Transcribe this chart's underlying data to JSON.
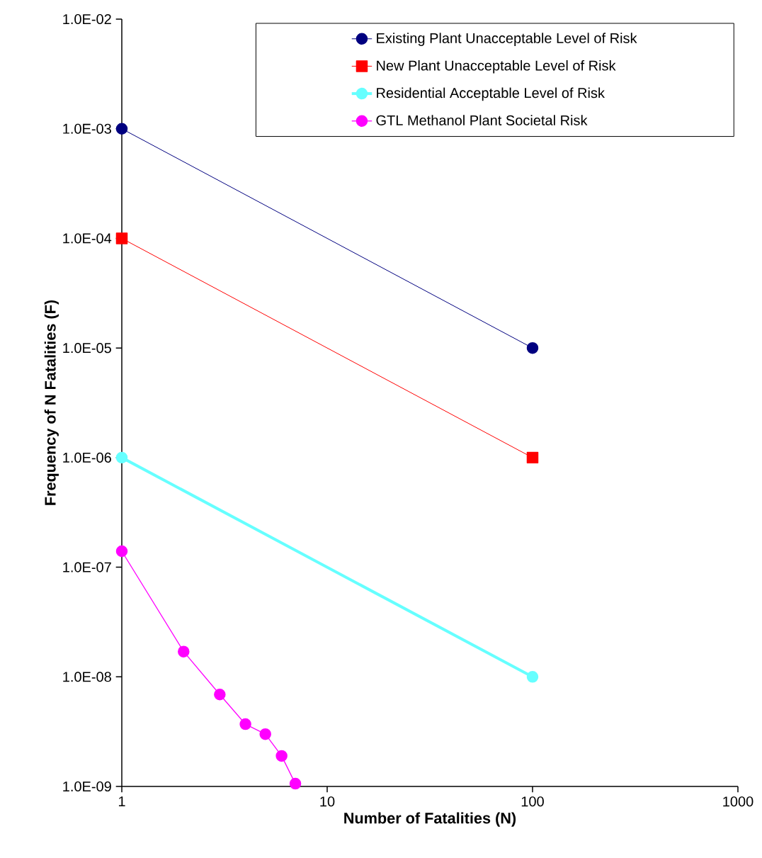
{
  "chart_data": {
    "type": "line",
    "xlabel": "Number of Fatalities (N)",
    "ylabel": "Frequency of N Fatalities (F)",
    "log": "xy",
    "xlim": [
      1,
      1000
    ],
    "xticks": [
      1,
      10,
      100,
      1000
    ],
    "ylim": [
      1e-09,
      0.01
    ],
    "yticks": [
      {
        "value": 1e-09,
        "label": "1.0E-09"
      },
      {
        "value": 1e-08,
        "label": "1.0E-08"
      },
      {
        "value": 1e-07,
        "label": "1.0E-07"
      },
      {
        "value": 1e-06,
        "label": "1.0E-06"
      },
      {
        "value": 1e-05,
        "label": "1.0E-05"
      },
      {
        "value": 0.0001,
        "label": "1.0E-04"
      },
      {
        "value": 0.001,
        "label": "1.0E-03"
      },
      {
        "value": 0.01,
        "label": "1.0E-02"
      }
    ],
    "grid": false,
    "legend": "top right",
    "line_style": "solid",
    "series": [
      {
        "name": "Existing Plant Unacceptable Level of Risk",
        "color": "#000080",
        "marker": "circle",
        "x": [
          1,
          100
        ],
        "values": [
          0.001,
          1e-05
        ]
      },
      {
        "name": "New Plant Unacceptable Level of Risk",
        "color": "#ff0000",
        "marker": "square",
        "x": [
          1,
          100
        ],
        "values": [
          0.0001,
          1e-06
        ]
      },
      {
        "name": "Residential Acceptable Level of Risk",
        "color": "#66ffff",
        "marker": "circle",
        "x": [
          1,
          100
        ],
        "values": [
          1e-06,
          1e-08
        ]
      },
      {
        "name": "GTL Methanol Plant Societal Risk",
        "color": "#ff00ff",
        "marker": "circle",
        "x": [
          1,
          2,
          3,
          4,
          5,
          6,
          7
        ],
        "values": [
          1.4e-07,
          1.7e-08,
          6.9e-09,
          3.7e-09,
          3e-09,
          1.9e-09,
          1.06e-09
        ]
      }
    ]
  }
}
